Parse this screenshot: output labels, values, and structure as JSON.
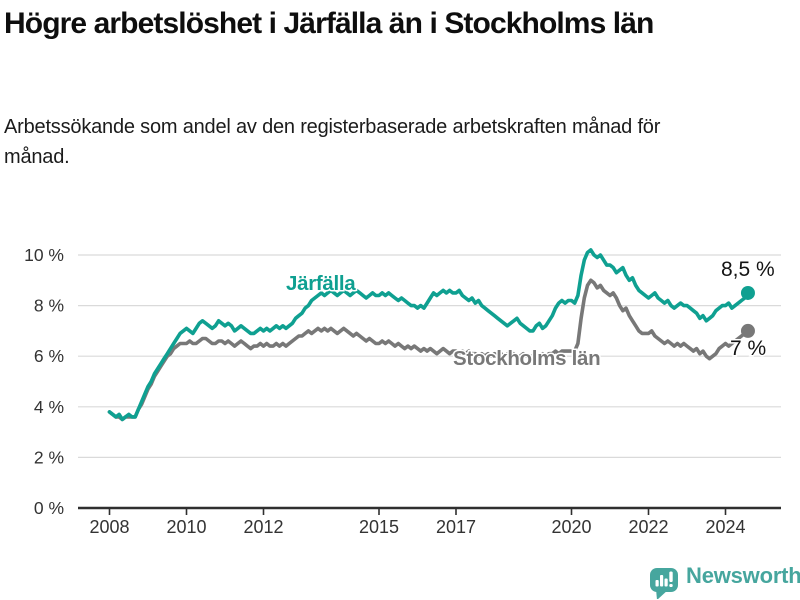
{
  "header": {
    "title": "Högre arbetslöshet i Järfälla än i Stockholms län",
    "subtitle": "Arbetssökande som andel av den registerbaserade arbetskraften månad för månad."
  },
  "footer": {
    "brand": "Newsworthy",
    "logo_icon": "bar-chart-speech-bubble-icon",
    "brand_color": "#46a69e"
  },
  "colors": {
    "jarfalla_line": "#0fa091",
    "stockholm_line": "#787878",
    "axis": "#2f2f2f",
    "gridline": "#dadada",
    "tick_text": "#333333",
    "end_label_text": "#141414"
  },
  "chart_data": {
    "type": "line",
    "title": "Högre arbetslöshet i Järfälla än i Stockholms län",
    "subtitle": "Arbetssökande som andel av den registerbaserade arbetskraften månad för månad.",
    "x_unit": "month",
    "x_start": {
      "year": 2008,
      "month": 1
    },
    "x_end": {
      "year": 2024,
      "month": 8
    },
    "ylim": [
      0,
      10.5
    ],
    "grid": "horizontal",
    "legend": "inline-labels",
    "x_ticks": [
      {
        "value": 2008,
        "label": "2008"
      },
      {
        "value": 2010,
        "label": "2010"
      },
      {
        "value": 2012,
        "label": "2012"
      },
      {
        "value": 2015,
        "label": "2015"
      },
      {
        "value": 2017,
        "label": "2017"
      },
      {
        "value": 2020,
        "label": "2020"
      },
      {
        "value": 2022,
        "label": "2022"
      },
      {
        "value": 2024,
        "label": "2024"
      }
    ],
    "y_ticks": [
      {
        "value": 0,
        "label": "0 %"
      },
      {
        "value": 2,
        "label": "2 %"
      },
      {
        "value": 4,
        "label": "4 %"
      },
      {
        "value": 6,
        "label": "6 %"
      },
      {
        "value": 8,
        "label": "8 %"
      },
      {
        "value": 10,
        "label": "10 %"
      }
    ],
    "series": [
      {
        "name": "Stockholms län",
        "color": "#787878",
        "end_label": "7 %",
        "end_value": 7.0,
        "values": [
          3.8,
          3.7,
          3.6,
          3.6,
          3.5,
          3.6,
          3.6,
          3.6,
          3.6,
          3.9,
          4.1,
          4.4,
          4.7,
          4.9,
          5.2,
          5.4,
          5.6,
          5.8,
          6.0,
          6.1,
          6.3,
          6.4,
          6.5,
          6.5,
          6.5,
          6.6,
          6.5,
          6.5,
          6.6,
          6.7,
          6.7,
          6.6,
          6.5,
          6.5,
          6.6,
          6.6,
          6.5,
          6.6,
          6.5,
          6.4,
          6.5,
          6.6,
          6.5,
          6.4,
          6.3,
          6.4,
          6.4,
          6.5,
          6.4,
          6.5,
          6.4,
          6.4,
          6.5,
          6.4,
          6.5,
          6.4,
          6.5,
          6.6,
          6.7,
          6.8,
          6.8,
          6.9,
          7.0,
          6.9,
          7.0,
          7.1,
          7.0,
          7.1,
          7.0,
          7.1,
          7.0,
          6.9,
          7.0,
          7.1,
          7.0,
          6.9,
          6.8,
          6.9,
          6.8,
          6.7,
          6.6,
          6.7,
          6.6,
          6.5,
          6.5,
          6.6,
          6.5,
          6.6,
          6.5,
          6.4,
          6.5,
          6.4,
          6.3,
          6.4,
          6.3,
          6.4,
          6.3,
          6.2,
          6.3,
          6.2,
          6.3,
          6.2,
          6.1,
          6.2,
          6.3,
          6.2,
          6.1,
          6.2,
          6.2,
          6.1,
          6.2,
          6.1,
          6.2,
          6.1,
          6.1,
          6.0,
          6.1,
          6.0,
          6.1,
          6.0,
          6.1,
          6.0,
          6.1,
          6.0,
          6.1,
          6.0,
          6.1,
          6.0,
          6.0,
          6.1,
          6.0,
          6.0,
          6.0,
          6.1,
          6.0,
          6.1,
          6.0,
          6.1,
          6.1,
          6.2,
          6.1,
          6.2,
          6.2,
          6.2,
          6.2,
          6.2,
          6.5,
          7.5,
          8.3,
          8.8,
          9.0,
          8.9,
          8.7,
          8.8,
          8.6,
          8.5,
          8.4,
          8.5,
          8.3,
          8.0,
          7.8,
          7.9,
          7.6,
          7.4,
          7.2,
          7.0,
          6.9,
          6.9,
          6.9,
          7.0,
          6.8,
          6.7,
          6.6,
          6.5,
          6.6,
          6.5,
          6.4,
          6.5,
          6.4,
          6.5,
          6.4,
          6.3,
          6.2,
          6.3,
          6.1,
          6.2,
          6.0,
          5.9,
          6.0,
          6.1,
          6.3,
          6.4,
          6.5,
          6.4,
          6.5,
          6.6,
          6.7,
          6.8,
          6.9,
          7.0
        ]
      },
      {
        "name": "Järfälla",
        "color": "#0fa091",
        "end_label": "8,5 %",
        "end_value": 8.5,
        "values": [
          3.8,
          3.7,
          3.6,
          3.7,
          3.5,
          3.6,
          3.7,
          3.6,
          3.6,
          3.9,
          4.2,
          4.5,
          4.8,
          5.0,
          5.3,
          5.5,
          5.7,
          5.9,
          6.1,
          6.3,
          6.5,
          6.7,
          6.9,
          7.0,
          7.1,
          7.0,
          6.9,
          7.1,
          7.3,
          7.4,
          7.3,
          7.2,
          7.1,
          7.2,
          7.4,
          7.3,
          7.2,
          7.3,
          7.2,
          7.0,
          7.1,
          7.2,
          7.1,
          7.0,
          6.9,
          6.9,
          7.0,
          7.1,
          7.0,
          7.1,
          7.0,
          7.1,
          7.2,
          7.1,
          7.2,
          7.1,
          7.2,
          7.3,
          7.5,
          7.6,
          7.7,
          7.9,
          8.0,
          8.2,
          8.3,
          8.4,
          8.5,
          8.4,
          8.5,
          8.6,
          8.5,
          8.4,
          8.5,
          8.6,
          8.5,
          8.4,
          8.5,
          8.6,
          8.5,
          8.4,
          8.3,
          8.4,
          8.5,
          8.4,
          8.4,
          8.5,
          8.4,
          8.5,
          8.4,
          8.3,
          8.2,
          8.3,
          8.2,
          8.1,
          8.0,
          8.0,
          7.9,
          8.0,
          7.9,
          8.1,
          8.3,
          8.5,
          8.4,
          8.5,
          8.6,
          8.5,
          8.6,
          8.5,
          8.5,
          8.6,
          8.4,
          8.3,
          8.2,
          8.3,
          8.1,
          8.2,
          8.0,
          7.9,
          7.8,
          7.7,
          7.6,
          7.5,
          7.4,
          7.3,
          7.2,
          7.3,
          7.4,
          7.5,
          7.3,
          7.2,
          7.1,
          7.0,
          7.0,
          7.2,
          7.3,
          7.1,
          7.2,
          7.4,
          7.6,
          7.9,
          8.1,
          8.2,
          8.1,
          8.2,
          8.2,
          8.1,
          8.4,
          9.2,
          9.8,
          10.1,
          10.2,
          10.0,
          9.9,
          10.0,
          9.8,
          9.6,
          9.6,
          9.5,
          9.3,
          9.4,
          9.5,
          9.2,
          9.0,
          9.1,
          8.8,
          8.6,
          8.5,
          8.4,
          8.3,
          8.4,
          8.5,
          8.3,
          8.2,
          8.1,
          8.2,
          8.0,
          7.9,
          8.0,
          8.1,
          8.0,
          8.0,
          7.9,
          7.8,
          7.7,
          7.5,
          7.6,
          7.4,
          7.5,
          7.6,
          7.8,
          7.9,
          8.0,
          8.0,
          8.1,
          7.9,
          8.0,
          8.1,
          8.2,
          8.3,
          8.5
        ]
      }
    ]
  }
}
